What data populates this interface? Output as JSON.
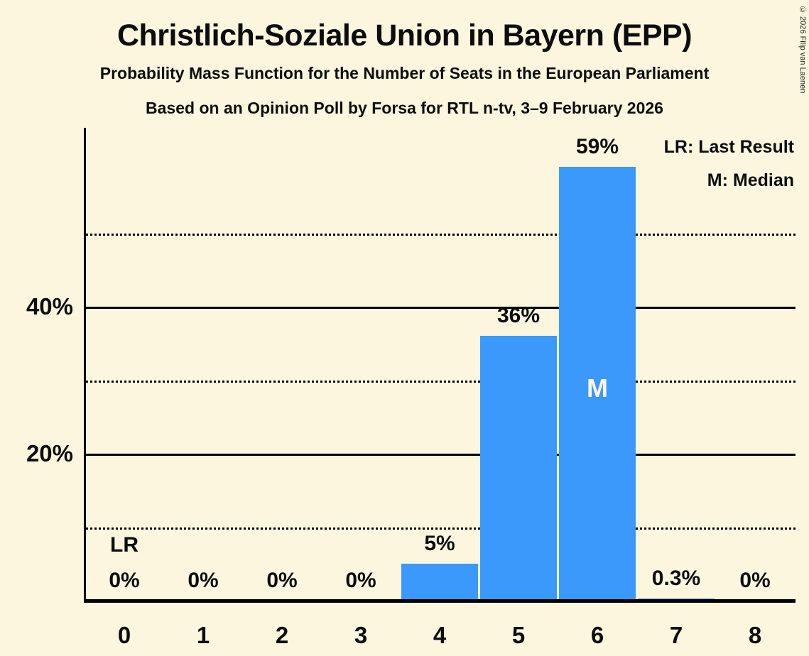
{
  "header": {
    "title": "Christlich-Soziale Union in Bayern (EPP)",
    "subtitle1": "Probability Mass Function for the Number of Seats in the European Parliament",
    "subtitle2": "Based on an Opinion Poll by Forsa for RTL n-tv, 3–9 February 2026",
    "copyright": "© 2026 Filip van Laenen"
  },
  "legend": {
    "lr": "LR: Last Result",
    "m": "M: Median"
  },
  "colors": {
    "background": "#FDF6DE",
    "bar": "#3A99FB",
    "text": "#0d0d0d",
    "label_on_bar": "#FDF6DE",
    "grid": "#000000"
  },
  "chart_data": {
    "type": "bar",
    "title": "Christlich-Soziale Union in Bayern (EPP)",
    "subtitle": "Probability Mass Function for the Number of Seats in the European Parliament",
    "source_line": "Based on an Opinion Poll by Forsa for RTL n-tv, 3–9 February 2026",
    "categories": [
      "0",
      "1",
      "2",
      "3",
      "4",
      "5",
      "6",
      "7",
      "8"
    ],
    "values": [
      0,
      0,
      0,
      0,
      5,
      36,
      59,
      0.3,
      0
    ],
    "bar_labels": [
      "0%",
      "0%",
      "0%",
      "0%",
      "5%",
      "36%",
      "59%",
      "0.3%",
      "0%"
    ],
    "ylim": [
      0,
      64
    ],
    "yticks": [
      {
        "value": 20,
        "label": "20%"
      },
      {
        "value": 40,
        "label": "40%"
      }
    ],
    "gridlines": [
      {
        "value": 10,
        "style": "dotted"
      },
      {
        "value": 20,
        "style": "solid"
      },
      {
        "value": 30,
        "style": "dotted"
      },
      {
        "value": 40,
        "style": "solid"
      },
      {
        "value": 50,
        "style": "dotted"
      }
    ],
    "annotations": {
      "last_result": {
        "seat": "0",
        "label": "LR"
      },
      "median": {
        "seat": "6",
        "label": "M"
      }
    },
    "legend_entries": [
      "LR: Last Result",
      "M: Median"
    ],
    "legend_position": "top-right",
    "grid": "horizontal-only"
  }
}
